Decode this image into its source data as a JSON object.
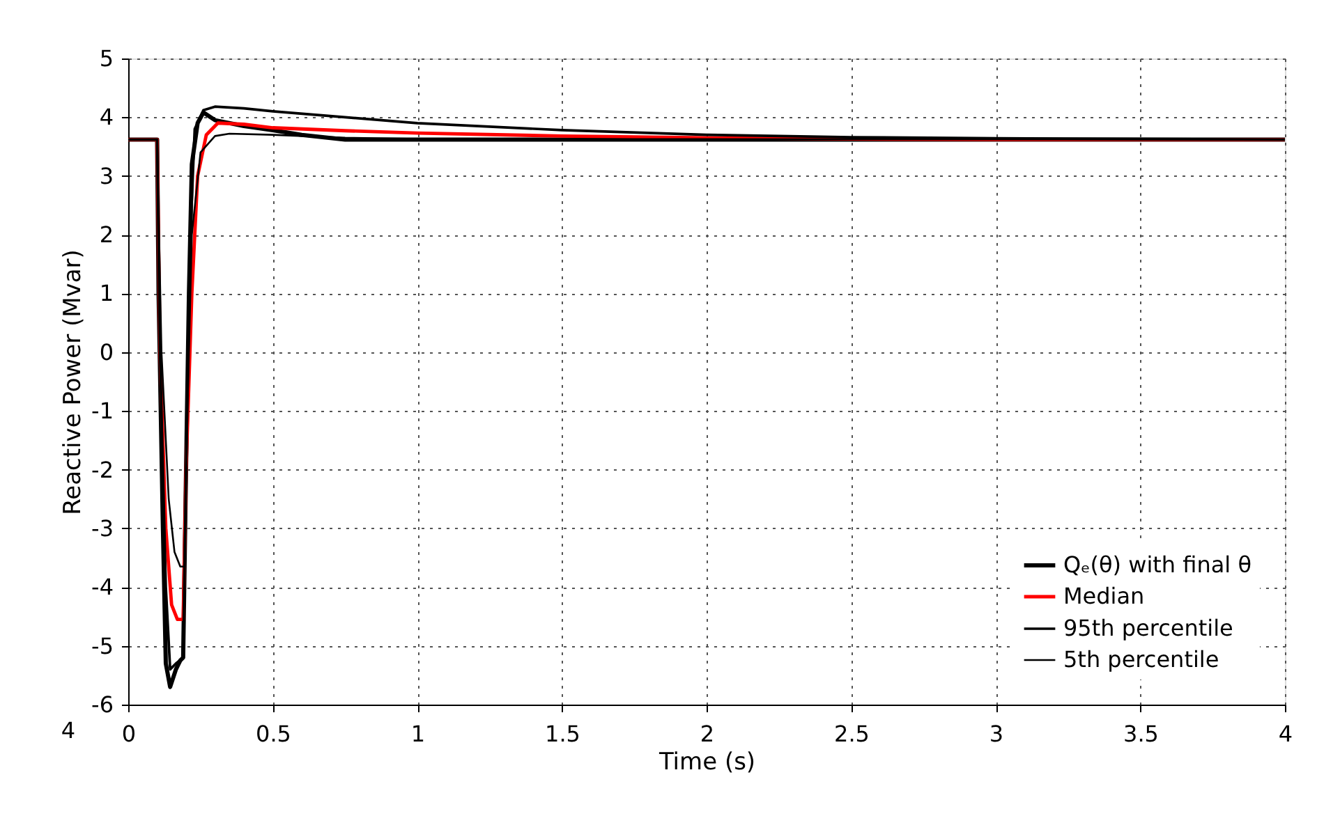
{
  "chart_data": {
    "type": "line",
    "xlabel": "Time (s)",
    "ylabel": "Reactive Power (Mvar)",
    "xlim": [
      0,
      4
    ],
    "ylim": [
      -6,
      5
    ],
    "xticks": [
      0,
      0.5,
      1,
      1.5,
      2,
      2.5,
      3,
      3.5,
      4
    ],
    "yticks": [
      -6,
      -5,
      -4,
      -3,
      -2,
      -1,
      0,
      1,
      2,
      3,
      4,
      5
    ],
    "grid": true,
    "legend": "bottom right",
    "line_style": "solid",
    "marker": "none",
    "annotations": [
      "4"
    ],
    "series": [
      {
        "name": "Qₑ(θ) with final θ",
        "color": "#000000",
        "x": [
          0,
          0.1,
          0.105,
          0.12,
          0.13,
          0.145,
          0.165,
          0.18,
          0.19,
          0.2,
          0.21,
          0.22,
          0.24,
          0.26,
          0.3,
          0.4,
          0.5,
          0.6,
          0.75,
          4
        ],
        "values": [
          3.62,
          3.62,
          1,
          -3,
          -5.3,
          -5.7,
          -5.4,
          -5.25,
          -5.2,
          -2,
          1,
          3.2,
          3.9,
          4.08,
          3.95,
          3.85,
          3.78,
          3.7,
          3.62,
          3.62
        ]
      },
      {
        "name": "Median",
        "color": "#ff0000",
        "x": [
          0,
          0.1,
          0.11,
          0.13,
          0.15,
          0.17,
          0.19,
          0.2,
          0.22,
          0.24,
          0.27,
          0.31,
          0.4,
          0.5,
          0.75,
          1,
          1.5,
          2,
          2.5,
          3,
          4
        ],
        "values": [
          3.62,
          3.62,
          0,
          -3,
          -4.3,
          -4.55,
          -4.55,
          -2,
          1,
          3,
          3.7,
          3.9,
          3.88,
          3.82,
          3.77,
          3.73,
          3.68,
          3.65,
          3.63,
          3.62,
          3.62
        ]
      },
      {
        "name": "95th percentile",
        "color": "#000000",
        "x": [
          0,
          0.1,
          0.11,
          0.13,
          0.145,
          0.165,
          0.19,
          0.2,
          0.215,
          0.23,
          0.26,
          0.3,
          0.4,
          0.5,
          0.75,
          1,
          1.5,
          2,
          2.5,
          3,
          4
        ],
        "values": [
          3.62,
          3.62,
          0,
          -4,
          -5.4,
          -5.3,
          -5.2,
          -2,
          2,
          3.8,
          4.12,
          4.18,
          4.15,
          4.1,
          4.0,
          3.9,
          3.78,
          3.7,
          3.66,
          3.64,
          3.62
        ]
      },
      {
        "name": "5th percentile",
        "color": "#000000",
        "x": [
          0,
          0.1,
          0.115,
          0.14,
          0.16,
          0.18,
          0.195,
          0.205,
          0.22,
          0.25,
          0.3,
          0.35,
          0.5,
          0.75,
          1,
          4
        ],
        "values": [
          3.62,
          3.62,
          0,
          -2.5,
          -3.4,
          -3.65,
          -3.65,
          -1,
          2,
          3.4,
          3.68,
          3.72,
          3.7,
          3.65,
          3.63,
          3.62
        ]
      }
    ]
  }
}
